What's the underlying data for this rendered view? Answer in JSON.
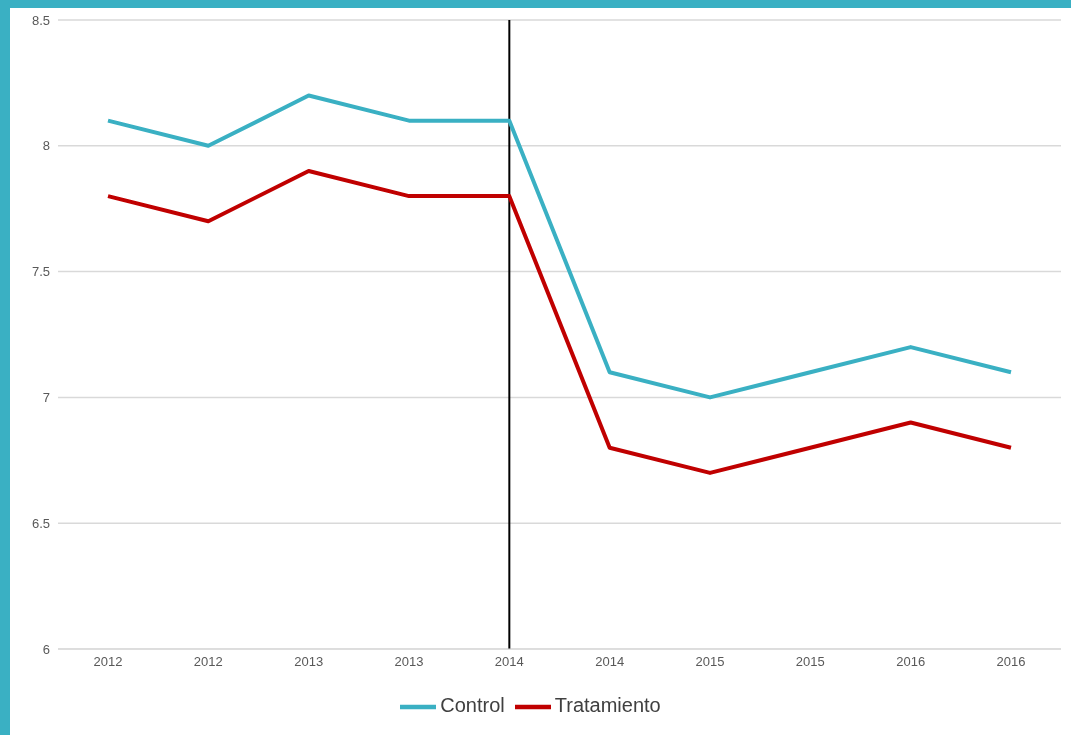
{
  "chart_data": {
    "type": "line",
    "categories": [
      "2012",
      "2012",
      "2013",
      "2013",
      "2014",
      "2014",
      "2015",
      "2015",
      "2016",
      "2016"
    ],
    "series": [
      {
        "name": "Tratamiento",
        "color": "#c00000",
        "values": [
          7.8,
          7.7,
          7.9,
          7.8,
          7.8,
          6.8,
          6.7,
          6.8,
          6.9,
          6.8
        ]
      },
      {
        "name": "Control",
        "color": "#3ab0c3",
        "values": [
          8.1,
          8.0,
          8.2,
          8.1,
          8.1,
          7.1,
          7.0,
          7.1,
          7.2,
          7.1
        ]
      }
    ],
    "ylim": [
      6,
      8.5
    ],
    "yticks": [
      6,
      6.5,
      7,
      7.5,
      8,
      8.5
    ],
    "grid": "y",
    "legend": "bottom",
    "marker": "none",
    "line_style": "solid",
    "ref_lines": [
      {
        "axis": "x",
        "value": "2014",
        "color": "#000000"
      }
    ]
  }
}
